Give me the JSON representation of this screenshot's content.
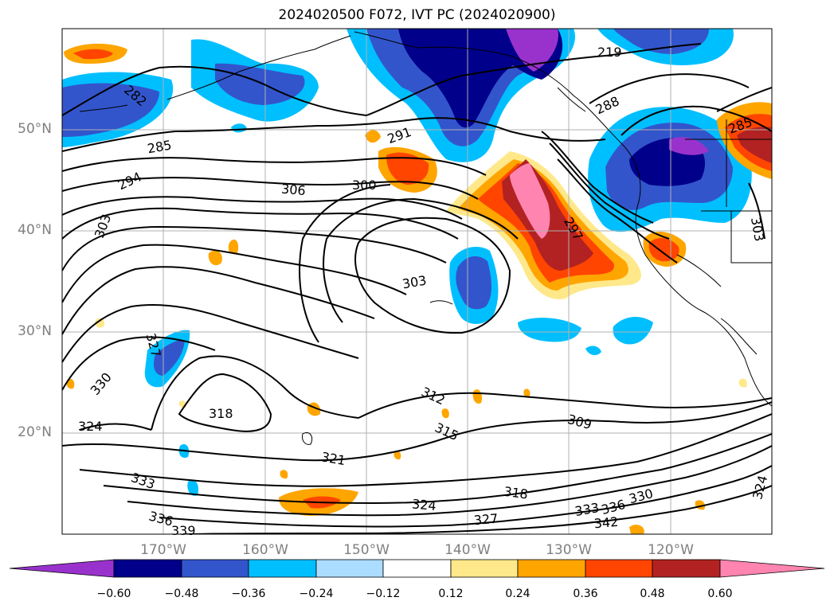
{
  "title": "2024020500 F072, IVT PC (2024020900)",
  "lat_labels": [
    "50°N",
    "40°N",
    "30°N",
    "20°N"
  ],
  "lon_labels": [
    "170°W",
    "160°W",
    "150°W",
    "140°W",
    "130°W",
    "120°W"
  ],
  "colorbar": {
    "ticks": [
      "−0.60",
      "−0.48",
      "−0.36",
      "−0.24",
      "−0.12",
      "0.12",
      "0.24",
      "0.36",
      "0.48",
      "0.60"
    ],
    "colors": [
      "#9932cc",
      "#00008b",
      "#3355cc",
      "#00bfff",
      "#aaddff",
      "#ffffff",
      "#ffe88a",
      "#ffa500",
      "#ff4500",
      "#b22222",
      "#ff85b0"
    ]
  },
  "contour_labels": [
    "219",
    "282",
    "288",
    "285",
    "291",
    "285",
    "294",
    "306",
    "300",
    "303",
    "297",
    "303",
    "303",
    "327",
    "330",
    "312",
    "318",
    "309",
    "315",
    "324",
    "321",
    "333",
    "318",
    "324",
    "336",
    "327",
    "330",
    "333",
    "336",
    "339",
    "342",
    "324"
  ]
}
